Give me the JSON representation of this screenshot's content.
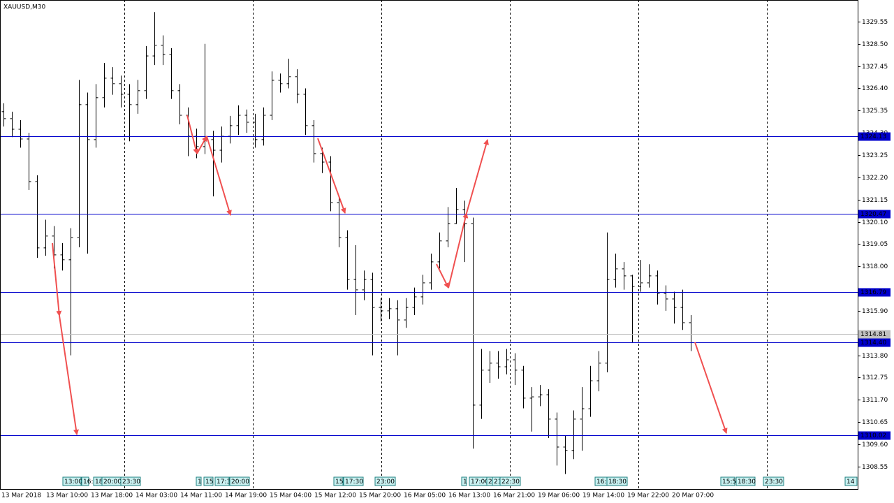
{
  "chart_data": {
    "type": "ohlc",
    "title": "XAUUSD,M30",
    "color": "#000000",
    "ylim": [
      1307.49,
      1330.57
    ],
    "yticks": [
      1308.55,
      {
        "value": 1309.6,
        "label": "1309.60"
      },
      1310.65,
      {
        "value": 1311.7,
        "label": "1311.70"
      },
      1312.75,
      {
        "value": 1313.8,
        "label": "1313.80"
      },
      {
        "value": 1315.9,
        "label": "1315.90"
      },
      {
        "value": 1318,
        "label": "1318.00"
      },
      1319.05,
      {
        "value": 1320.1,
        "label": "1320.10"
      },
      1321.15,
      {
        "value": 1322.2,
        "label": "1322.20"
      },
      1323.25,
      {
        "value": 1324.3,
        "label": "1324.30"
      },
      1325.35,
      {
        "value": 1326.4,
        "label": "1326.40"
      },
      1327.45,
      {
        "value": 1328.5,
        "label": "1328.50"
      },
      1329.55
    ],
    "open": [
      1325.3,
      1324.97,
      1324.47,
      1324.01,
      1322.0,
      1318.87,
      1319.43,
      1318.54,
      1318.31,
      1319.36,
      1325.63,
      1323.98,
      1325.96,
      1326.88,
      1326.62,
      1326.12,
      1325.63,
      1326.29,
      1327.93,
      1328.43,
      1328.0,
      1326.29,
      1325.13,
      1324.14,
      1323.65,
      1323.98,
      1323.48,
      1324.14,
      1324.64,
      1325.13,
      1324.8,
      1323.98,
      1325.13,
      1326.78,
      1326.62,
      1326.95,
      1326.12,
      1324.64,
      1323.32,
      1322.92,
      1321.01,
      1319.36,
      1317.38,
      1316.89,
      1317.38,
      1316.06,
      1315.9,
      1316.0,
      1315.47,
      1316.06,
      1316.56,
      1317.22,
      1318.21,
      1319.2,
      1320.02,
      1320.68,
      1320.02,
      1311.45,
      1313.1,
      1313.43,
      1313.26,
      1313.59,
      1313.1,
      1311.78,
      1311.84,
      1311.94,
      1310.79,
      1309.47,
      1309.31,
      1310.79,
      1311.28,
      1312.6,
      1313.43,
      1317.38,
      1317.88,
      1317.55,
      1317.05,
      1317.22,
      1317.55,
      1316.72,
      1316.46,
      1316.06,
      1315.34
    ],
    "high": [
      1325.7,
      1325.3,
      1324.9,
      1324.3,
      1322.3,
      1320.2,
      1319.9,
      1319.1,
      1319.8,
      1326.8,
      1326.2,
      1326.6,
      1327.6,
      1327.4,
      1327.0,
      1326.6,
      1326.8,
      1328.4,
      1330.0,
      1328.9,
      1328.3,
      1326.6,
      1325.5,
      1324.5,
      1328.5,
      1324.4,
      1324.6,
      1325.1,
      1325.6,
      1325.4,
      1325.2,
      1325.5,
      1327.2,
      1327.1,
      1327.8,
      1327.3,
      1326.4,
      1324.9,
      1323.6,
      1323.2,
      1321.3,
      1319.7,
      1319.0,
      1317.8,
      1317.7,
      1316.5,
      1316.5,
      1316.4,
      1316.5,
      1317.0,
      1317.6,
      1318.6,
      1319.6,
      1320.8,
      1321.7,
      1321.1,
      1320.3,
      1314.1,
      1314.0,
      1314.0,
      1314.1,
      1313.9,
      1313.3,
      1312.3,
      1312.4,
      1312.2,
      1311.1,
      1310.0,
      1311.2,
      1312.3,
      1313.3,
      1314.0,
      1319.6,
      1318.6,
      1318.2,
      1317.6,
      1318.3,
      1318.1,
      1317.8,
      1317.1,
      1316.8,
      1316.9,
      1315.7
    ],
    "low": [
      1324.6,
      1324.1,
      1323.6,
      1321.6,
      1318.4,
      1318.5,
      1317.9,
      1317.8,
      1313.8,
      1318.9,
      1318.6,
      1323.6,
      1325.5,
      1326.1,
      1325.5,
      1323.9,
      1325.2,
      1325.9,
      1327.5,
      1327.5,
      1325.9,
      1324.7,
      1323.2,
      1323.1,
      1323.3,
      1321.3,
      1322.9,
      1323.8,
      1324.2,
      1324.3,
      1323.6,
      1323.7,
      1324.9,
      1326.2,
      1326.4,
      1325.7,
      1324.2,
      1322.9,
      1322.4,
      1320.6,
      1318.9,
      1316.9,
      1315.7,
      1316.4,
      1313.8,
      1315.4,
      1315.5,
      1313.8,
      1315.1,
      1315.7,
      1316.2,
      1316.9,
      1317.9,
      1318.9,
      1320.0,
      1318.2,
      1309.4,
      1310.8,
      1312.5,
      1312.7,
      1312.9,
      1312.4,
      1311.3,
      1310.2,
      1311.4,
      1309.9,
      1308.6,
      1308.2,
      1308.9,
      1309.3,
      1310.9,
      1312.1,
      1313.0,
      1317.0,
      1316.9,
      1314.4,
      1316.8,
      1317.0,
      1316.2,
      1315.9,
      1315.3,
      1315.0,
      1314.0
    ],
    "close": [
      1324.97,
      1324.47,
      1324.01,
      1322.0,
      1318.87,
      1319.43,
      1318.54,
      1318.31,
      1319.36,
      1325.63,
      1323.98,
      1325.96,
      1326.88,
      1326.62,
      1326.12,
      1325.63,
      1326.29,
      1327.93,
      1328.43,
      1328.0,
      1326.29,
      1325.13,
      1324.14,
      1323.65,
      1323.98,
      1323.48,
      1324.14,
      1324.64,
      1325.13,
      1324.8,
      1323.98,
      1325.13,
      1326.78,
      1326.62,
      1326.95,
      1326.12,
      1324.64,
      1323.32,
      1322.92,
      1321.01,
      1319.36,
      1317.38,
      1316.89,
      1317.38,
      1316.06,
      1315.9,
      1316.0,
      1315.47,
      1316.06,
      1316.56,
      1317.22,
      1318.21,
      1319.2,
      1320.02,
      1320.68,
      1320.02,
      1311.45,
      1313.1,
      1313.43,
      1313.26,
      1313.59,
      1313.1,
      1311.78,
      1311.84,
      1311.94,
      1310.79,
      1309.47,
      1309.31,
      1310.79,
      1311.28,
      1312.6,
      1313.43,
      1317.38,
      1317.88,
      1317.55,
      1317.05,
      1317.22,
      1317.55,
      1316.72,
      1316.46,
      1316.06,
      1315.34,
      1314.4
    ],
    "levels": [
      1324.13,
      1320.47,
      1316.79,
      {
        "value": 1314.4,
        "label": "1314.40"
      },
      1310.02
    ],
    "level_color": "#0000cc",
    "price_line": 1314.81,
    "price_line_color": "#c0c0c0",
    "time_labels": [
      "13 Mar 2018",
      "13 Mar 10:00",
      "13 Mar 18:00",
      "14 Mar 03:00",
      "14 Mar 11:00",
      "14 Mar 19:00",
      "15 Mar 04:00",
      "15 Mar 12:00",
      "15 Mar 20:00",
      "16 Mar 05:00",
      "16 Mar 13:00",
      "16 Mar 21:00",
      "19 Mar 06:00",
      "19 Mar 14:00",
      "19 Mar 22:00",
      "20 Mar 07:00"
    ],
    "session_markers": [
      "13:00",
      "16:",
      "18",
      "20:00",
      "23:30",
      "1",
      "15",
      "17:3",
      "20:00",
      "15",
      "17:30",
      "23:00",
      "1",
      "17:00",
      "2",
      "21",
      "22:30",
      "16:",
      "18:30",
      "15:5",
      "18:30",
      "23:30",
      "14"
    ]
  }
}
